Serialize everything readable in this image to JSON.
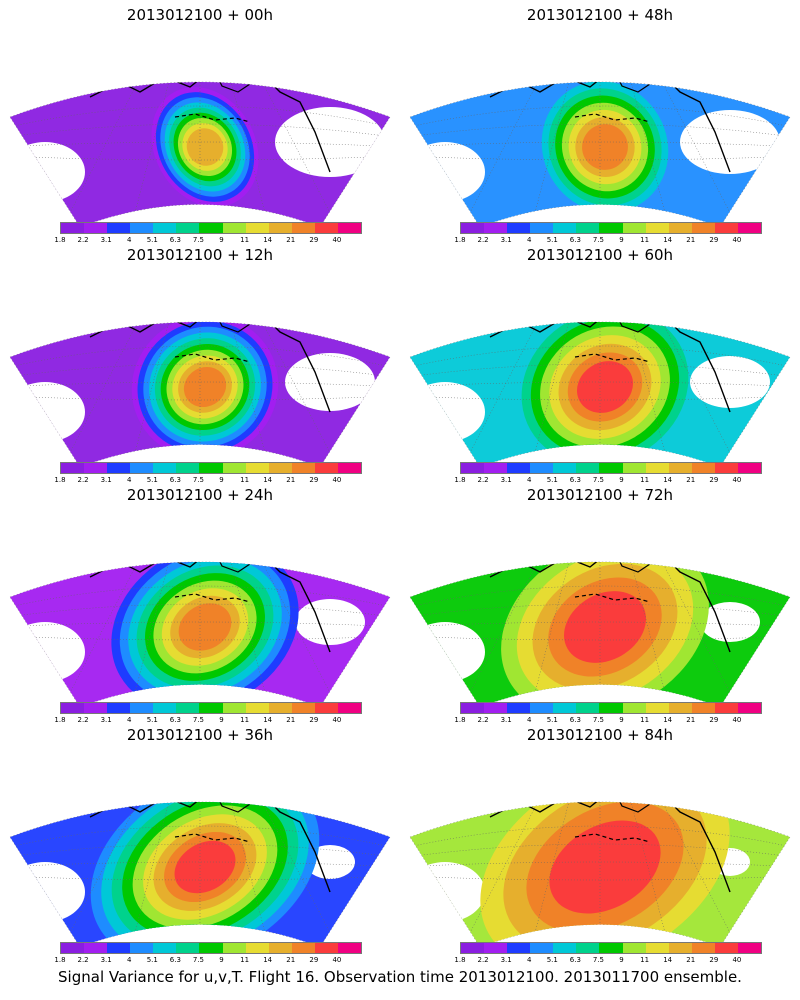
{
  "panels": [
    {
      "title": "2013012100  +  00h"
    },
    {
      "title": "2013012100  +  48h"
    },
    {
      "title": "2013012100  +  12h"
    },
    {
      "title": "2013012100  +  60h"
    },
    {
      "title": "2013012100  +  24h"
    },
    {
      "title": "2013012100  +  72h"
    },
    {
      "title": "2013012100  +  36h"
    },
    {
      "title": "2013012100  +  84h"
    }
  ],
  "colorbar": {
    "labels": [
      "1.8",
      "2.2",
      "3.1",
      "4",
      "5.1",
      "6.3",
      "7.5",
      "9",
      "11",
      "14",
      "21",
      "29",
      "40"
    ],
    "colors": [
      "#8a1ee0",
      "#a21ef0",
      "#1e3cff",
      "#1e8cff",
      "#00c8d7",
      "#00d28c",
      "#00c800",
      "#a0e632",
      "#e6dc32",
      "#e6af2d",
      "#f08228",
      "#fa3c3c",
      "#f00082"
    ]
  },
  "footer": "Signal Variance for u,v,T.  Flight 16.  Observation time 2013012100.  2013011700 ensemble."
}
